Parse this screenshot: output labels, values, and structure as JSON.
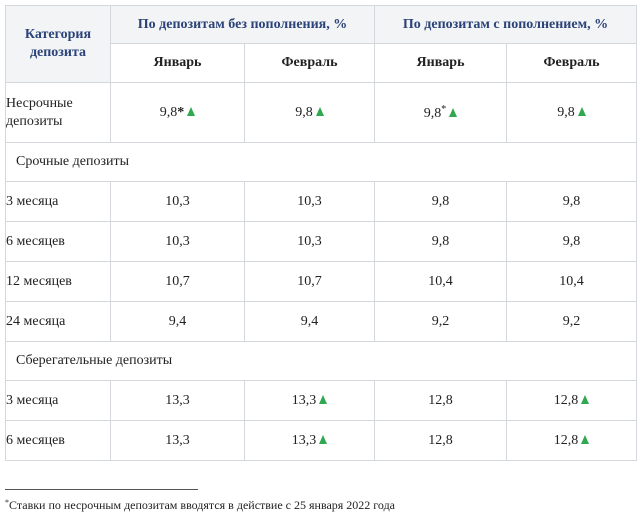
{
  "header": {
    "category": "Категория депозита",
    "group_without": "По депозитам без пополнения, %",
    "group_with": "По депозитам с пополнением, %",
    "months": [
      "Январь",
      "Февраль",
      "Январь",
      "Февраль"
    ]
  },
  "rows": [
    {
      "type": "row",
      "label": "Несрочные депозиты",
      "values": [
        "9,8",
        "9,8",
        "9,8",
        "9,8"
      ],
      "marks": [
        "*",
        "",
        "*",
        ""
      ],
      "arrows": [
        true,
        true,
        true,
        true
      ]
    },
    {
      "type": "section",
      "label": "Срочные депозиты"
    },
    {
      "type": "row",
      "label": "3 месяца",
      "values": [
        "10,3",
        "10,3",
        "9,8",
        "9,8"
      ],
      "arrows": [
        false,
        false,
        false,
        false
      ]
    },
    {
      "type": "row",
      "label": "6 месяцев",
      "values": [
        "10,3",
        "10,3",
        "9,8",
        "9,8"
      ],
      "arrows": [
        false,
        false,
        false,
        false
      ]
    },
    {
      "type": "row",
      "label": "12 месяцев",
      "values": [
        "10,7",
        "10,7",
        "10,4",
        "10,4"
      ],
      "arrows": [
        false,
        false,
        false,
        false
      ]
    },
    {
      "type": "row",
      "label": "24 месяца",
      "values": [
        "9,4",
        "9,4",
        "9,2",
        "9,2"
      ],
      "arrows": [
        false,
        false,
        false,
        false
      ]
    },
    {
      "type": "section",
      "label": "Сберегательные депозиты"
    },
    {
      "type": "row",
      "label": "3 месяца",
      "values": [
        "13,3",
        "13,3",
        "12,8",
        "12,8"
      ],
      "arrows": [
        false,
        true,
        false,
        true
      ]
    },
    {
      "type": "row",
      "label": "6 месяцев",
      "values": [
        "13,3",
        "13,3",
        "12,8",
        "12,8"
      ],
      "arrows": [
        false,
        true,
        false,
        true
      ]
    }
  ],
  "footnote": {
    "mark": "*",
    "text": "Ставки по несрочным депозитам вводятся в действие с 25 января 2022 года"
  },
  "colors": {
    "header_text": "#2b4378",
    "arrow_up": "#2fa84f",
    "border": "#d4d7dc"
  },
  "icons": {
    "increase": "triangle-up-icon"
  }
}
